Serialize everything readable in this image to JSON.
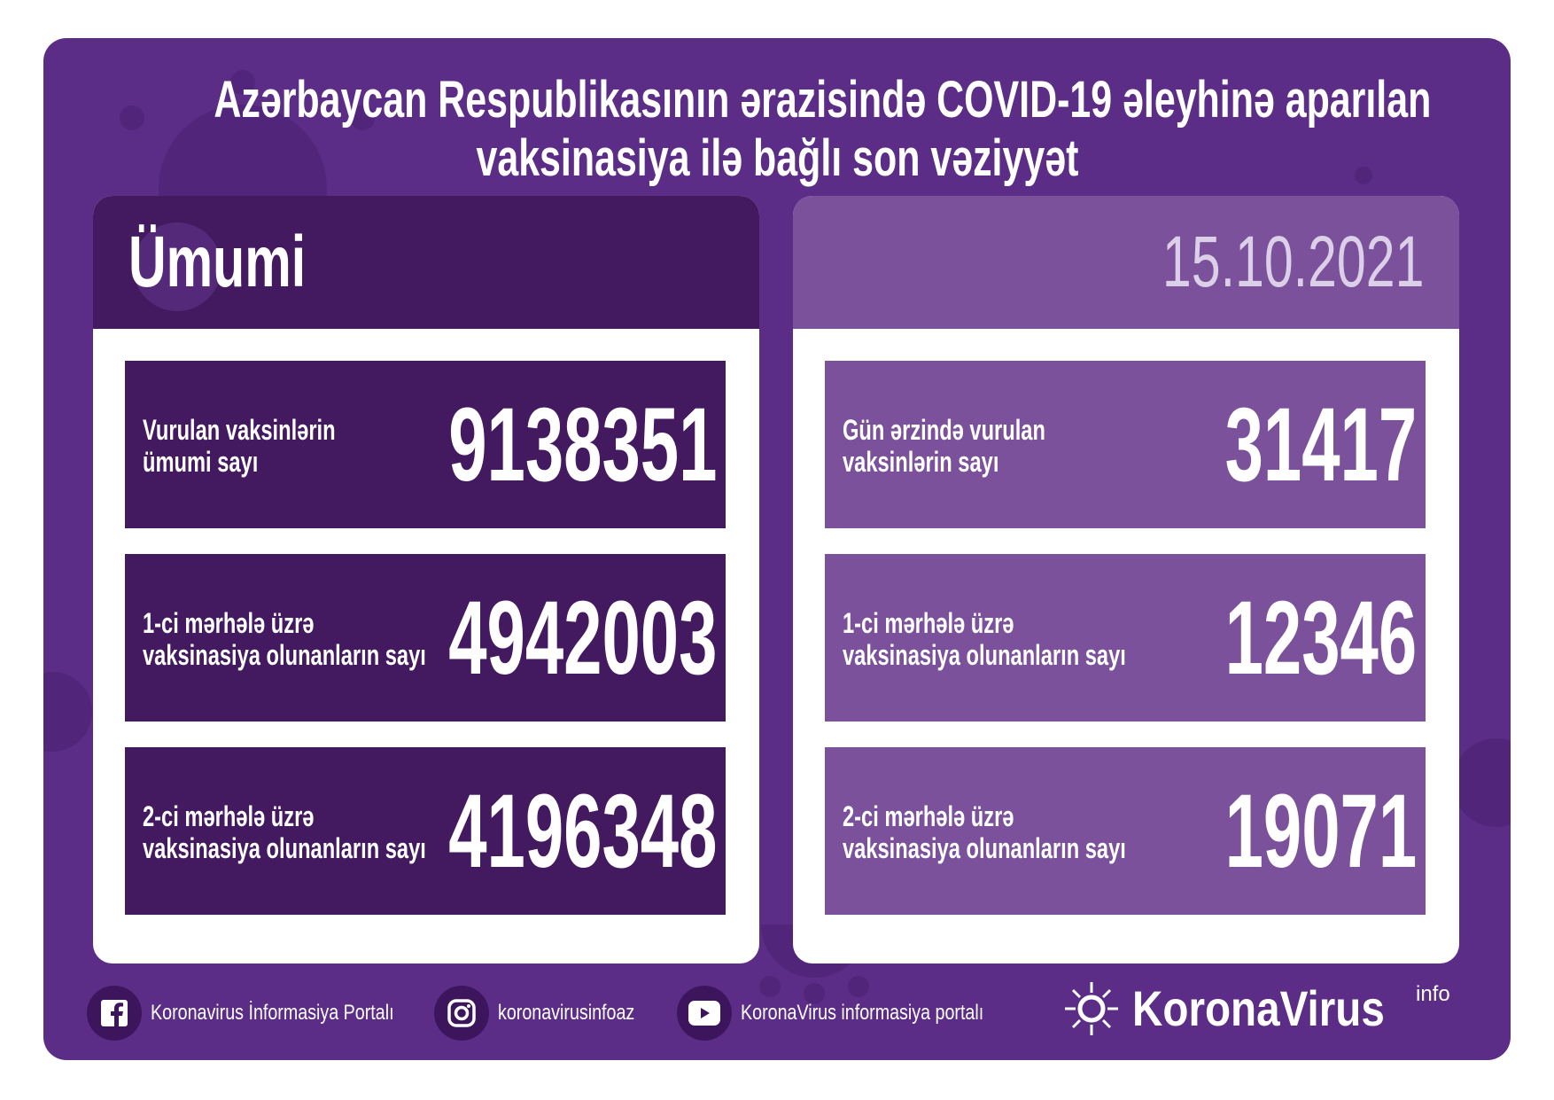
{
  "title": {
    "line1": "Azərbaycan Respublikasının ərazisində COVID-19 əleyhinə aparılan",
    "line2": "vaksinasiya ilə bağlı son vəziyyət"
  },
  "total": {
    "heading": "Ümumi",
    "rows": [
      {
        "label1": "Vurulan vaksinlərin",
        "label2": "ümumi sayı",
        "value": "9138351"
      },
      {
        "label1": "1-ci mərhələ üzrə",
        "label2": "vaksinasiya olunanların sayı",
        "value": "4942003"
      },
      {
        "label1": "2-ci mərhələ üzrə",
        "label2": "vaksinasiya olunanların sayı",
        "value": "4196348"
      }
    ]
  },
  "daily": {
    "date": "15.10.2021",
    "rows": [
      {
        "label1": "Gün ərzində vurulan",
        "label2": "vaksinlərin sayı",
        "value": "31417"
      },
      {
        "label1": "1-ci mərhələ üzrə",
        "label2": "vaksinasiya olunanların sayı",
        "value": "12346"
      },
      {
        "label1": "2-ci mərhələ üzrə",
        "label2": "vaksinasiya olunanların sayı",
        "value": "19071"
      }
    ]
  },
  "footer": {
    "facebook": {
      "icon": "facebook-icon",
      "label": "Koronavirus İnformasiya Portalı"
    },
    "instagram": {
      "icon": "instagram-icon",
      "label": "koronavirusinfoaz"
    },
    "youtube": {
      "icon": "youtube-icon",
      "label": "KoronaVirus informasiya portalı"
    },
    "logo": {
      "name": "KoronaVirus",
      "suffix": "info"
    }
  },
  "colors": {
    "background": "#5b2d86",
    "dark": "#43195f",
    "light": "#7a519a"
  }
}
